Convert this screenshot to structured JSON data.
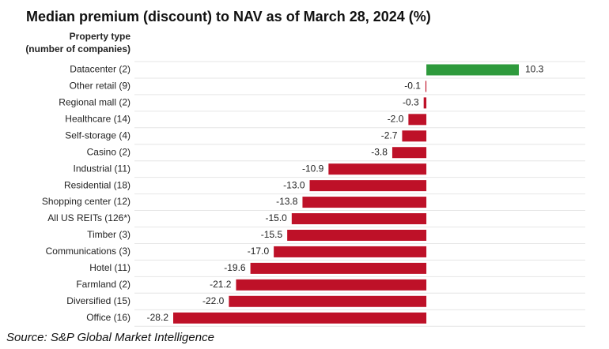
{
  "chart_data": {
    "type": "bar",
    "orientation": "horizontal",
    "title": "Median premium (discount) to NAV as of March 28, 2024 (%)",
    "ylabel": [
      "Property type",
      "(number of companies)"
    ],
    "categories": [
      "Datacenter (2)",
      "Other retail (9)",
      "Regional mall (2)",
      "Healthcare (14)",
      "Self-storage (4)",
      "Casino (2)",
      "Industrial (11)",
      "Residential (18)",
      "Shopping center (12)",
      "All US REITs (126*)",
      "Timber (3)",
      "Communications (3)",
      "Hotel (11)",
      "Farmland (2)",
      "Diversified (15)",
      "Office (16)"
    ],
    "values": [
      10.3,
      -0.1,
      -0.3,
      -2.0,
      -2.7,
      -3.8,
      -10.9,
      -13.0,
      -13.8,
      -15.0,
      -15.5,
      -17.0,
      -19.6,
      -21.2,
      -22.0,
      -28.2
    ],
    "value_labels": [
      "10.3",
      "-0.1",
      "-0.3",
      "-2.0",
      "-2.7",
      "-3.8",
      "-10.9",
      "-13.0",
      "-13.8",
      "-15.0",
      "-15.5",
      "-17.0",
      "-19.6",
      "-21.2",
      "-22.0",
      "-28.2"
    ],
    "positive_color": "#2e9a3c",
    "negative_color": "#be1128",
    "source": "Source: S&P Global Market Intelligence"
  }
}
